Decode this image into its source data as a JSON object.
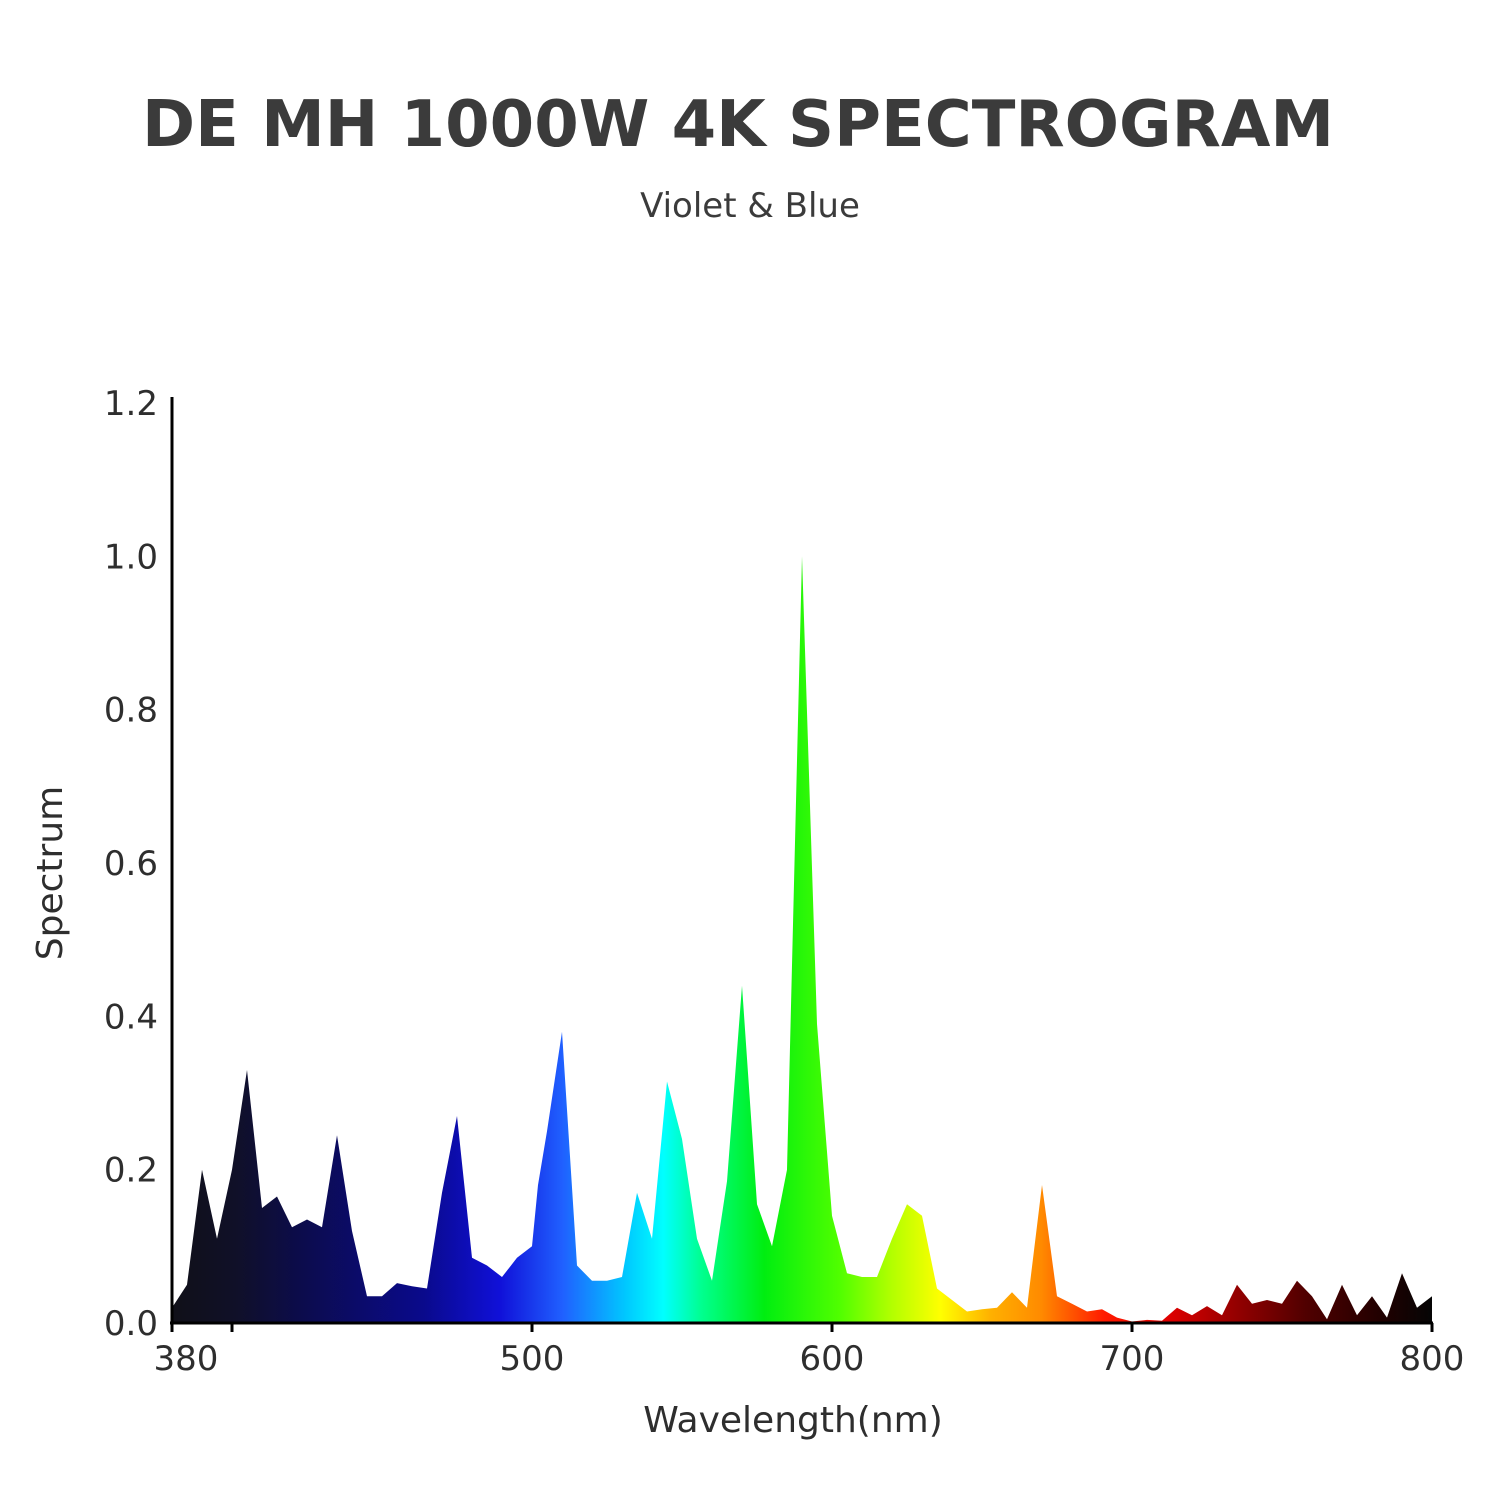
{
  "chart_data": {
    "type": "area",
    "title": "DE MH 1000W 4K SPECTROGRAM",
    "subtitle": "Violet & Blue",
    "xlabel": "Wavelength(nm)",
    "ylabel": "Spectrum",
    "xlim": [
      380,
      800
    ],
    "ylim": [
      0,
      1.2
    ],
    "x_ticks": [
      380,
      500,
      600,
      700,
      800
    ],
    "x_tick_labels": [
      "380",
      "500",
      "600",
      "700",
      "800"
    ],
    "x_minor_ticks": [
      400
    ],
    "y_ticks": [
      0,
      0.2,
      0.4,
      0.6,
      0.8,
      1.0,
      1.2
    ],
    "y_tick_labels": [
      "0.0",
      "0.2",
      "0.4",
      "0.6",
      "0.8",
      "1.0",
      "1.2"
    ],
    "grid": false,
    "fill": "wavelength-color gradient",
    "x": [
      380,
      385,
      390,
      395,
      400,
      405,
      410,
      415,
      420,
      425,
      430,
      435,
      440,
      445,
      450,
      455,
      460,
      465,
      470,
      475,
      480,
      485,
      490,
      495,
      500,
      502,
      505,
      510,
      515,
      520,
      525,
      530,
      535,
      540,
      545,
      550,
      555,
      560,
      565,
      570,
      575,
      580,
      585,
      590,
      595,
      600,
      605,
      610,
      615,
      620,
      625,
      630,
      635,
      640,
      645,
      650,
      655,
      660,
      665,
      670,
      675,
      680,
      685,
      690,
      695,
      700,
      705,
      710,
      715,
      720,
      725,
      730,
      735,
      740,
      745,
      750,
      755,
      760,
      765,
      770,
      775,
      780,
      785,
      790,
      795,
      800
    ],
    "values": [
      0.02,
      0.05,
      0.2,
      0.11,
      0.2,
      0.33,
      0.15,
      0.165,
      0.125,
      0.135,
      0.125,
      0.245,
      0.12,
      0.035,
      0.035,
      0.052,
      0.048,
      0.045,
      0.17,
      0.27,
      0.085,
      0.075,
      0.06,
      0.085,
      0.1,
      0.18,
      0.25,
      0.38,
      0.075,
      0.055,
      0.055,
      0.06,
      0.17,
      0.11,
      0.315,
      0.24,
      0.11,
      0.055,
      0.185,
      0.44,
      0.155,
      0.1,
      0.2,
      1.0,
      0.39,
      0.14,
      0.065,
      0.06,
      0.06,
      0.11,
      0.155,
      0.14,
      0.045,
      0.03,
      0.015,
      0.018,
      0.02,
      0.04,
      0.02,
      0.18,
      0.035,
      0.025,
      0.015,
      0.018,
      0.007,
      0.002,
      0.004,
      0.003,
      0.02,
      0.01,
      0.022,
      0.01,
      0.05,
      0.025,
      0.03,
      0.025,
      0.055,
      0.035,
      0.005,
      0.05,
      0.01,
      0.035,
      0.007,
      0.065,
      0.02,
      0.035
    ]
  }
}
